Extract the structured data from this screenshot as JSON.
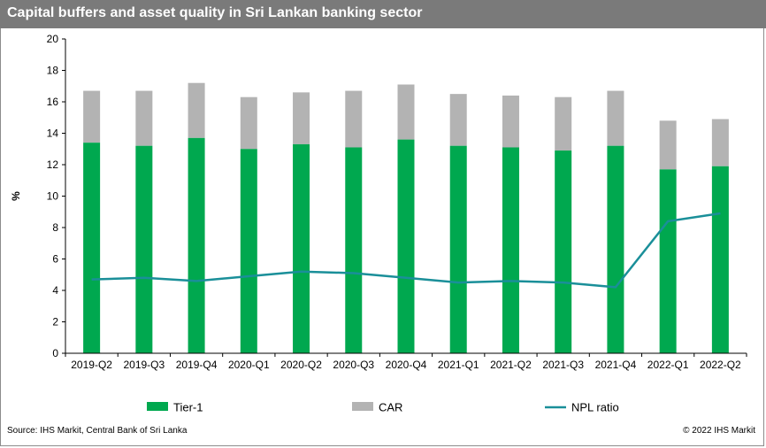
{
  "title": "Capital buffers and asset quality in Sri Lankan banking sector",
  "source": "Source:  IHS Markit, Central Bank of Sri Lanka",
  "copyright": "© 2022  IHS Markit",
  "colors": {
    "tier1": "#00a84f",
    "car": "#b3b3b3",
    "npl": "#1a8f99",
    "axis": "#000000"
  },
  "chart_data": {
    "type": "bar",
    "categories": [
      "2019-Q2",
      "2019-Q3",
      "2019-Q4",
      "2020-Q1",
      "2020-Q2",
      "2020-Q3",
      "2020-Q4",
      "2021-Q1",
      "2021-Q2",
      "2021-Q3",
      "2021-Q4",
      "2022-Q1",
      "2022-Q2"
    ],
    "series": [
      {
        "name": "Tier-1",
        "kind": "bar-stack-base",
        "values": [
          13.4,
          13.2,
          13.7,
          13.0,
          13.3,
          13.1,
          13.6,
          13.2,
          13.1,
          12.9,
          13.2,
          11.7,
          11.9
        ]
      },
      {
        "name": "CAR",
        "kind": "bar-total",
        "values": [
          16.7,
          16.7,
          17.2,
          16.3,
          16.6,
          16.7,
          17.1,
          16.5,
          16.4,
          16.3,
          16.7,
          14.8,
          14.9
        ]
      },
      {
        "name": "NPL ratio",
        "kind": "line",
        "values": [
          4.7,
          4.8,
          4.6,
          4.9,
          5.2,
          5.1,
          4.8,
          4.5,
          4.6,
          4.5,
          4.2,
          8.4,
          8.9
        ]
      }
    ],
    "ylabel": "%",
    "ylim": [
      0,
      20
    ],
    "yticks": [
      "0",
      "2",
      "4",
      "6",
      "8",
      "10",
      "12",
      "14",
      "16",
      "18",
      "20"
    ],
    "legend": [
      "Tier-1",
      "CAR",
      "NPL ratio"
    ],
    "legend_position": "bottom"
  }
}
